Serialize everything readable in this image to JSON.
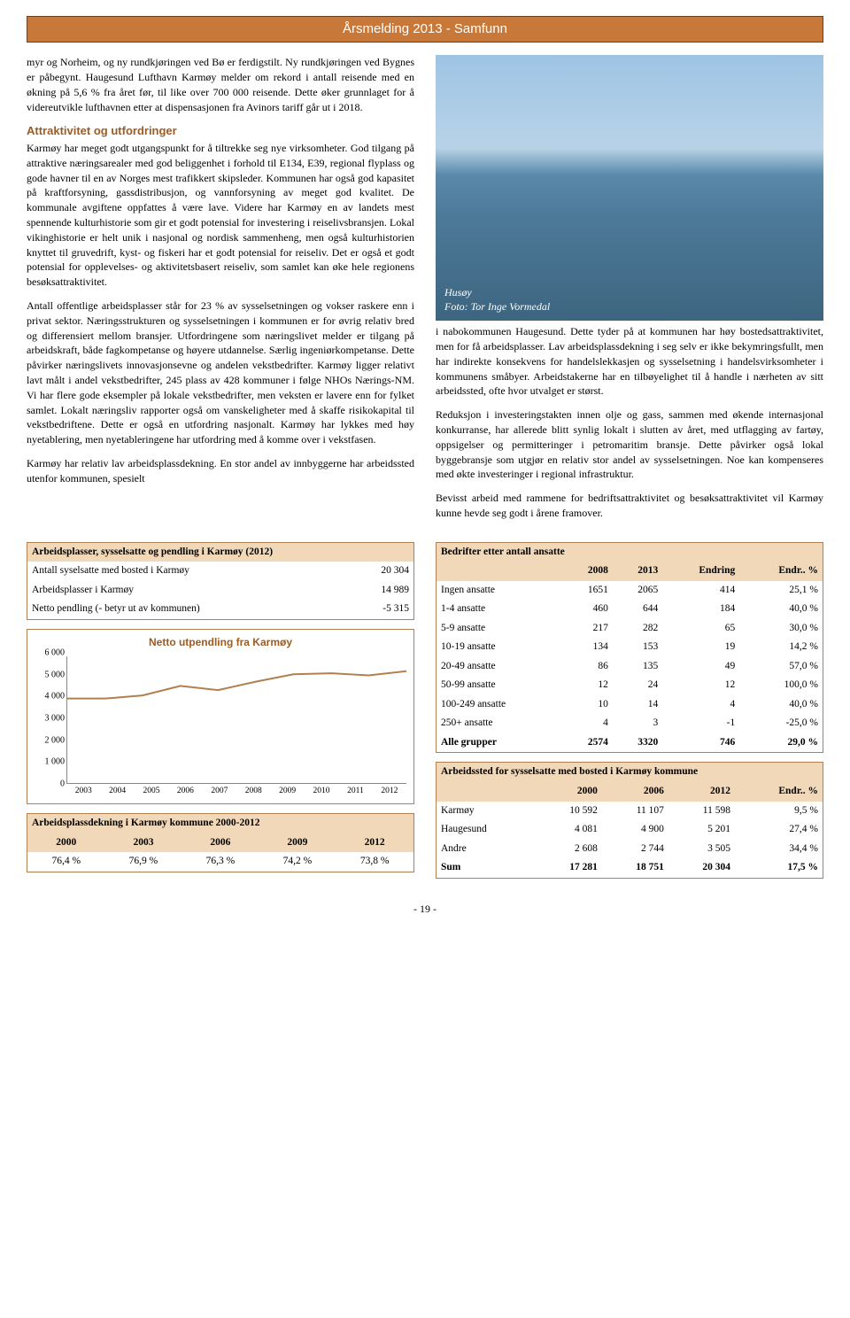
{
  "header": {
    "title": "Årsmelding 2013 - Samfunn"
  },
  "left": {
    "p1": "myr og Norheim, og ny rundkjøringen ved Bø er ferdigstilt. Ny rundkjøringen ved Bygnes er påbegynt. Haugesund Lufthavn Karmøy melder om rekord i antall reisende med en økning på 5,6 % fra året før, til like over 700 000 reisende. Dette øker grunnlaget for å videreutvikle lufthavnen etter at dispensasjonen fra Avinors tariff går ut i 2018.",
    "h1": "Attraktivitet og utfordringer",
    "p2": "Karmøy har meget godt utgangspunkt for å tiltrekke seg nye virksomheter. God tilgang på attraktive næringsarealer med god beliggenhet i forhold til E134, E39, regional flyplass og gode havner til en av Norges mest trafikkert skipsleder. Kommunen har også god kapasitet på kraftforsyning, gassdistribusjon, og vannforsyning av meget god kvalitet. De kommunale avgiftene oppfattes å være lave. Videre har Karmøy en av landets mest spennende kulturhistorie som gir et godt potensial for investering i reiselivsbransjen. Lokal vikinghistorie er helt unik i nasjonal og nordisk sammenheng, men også kulturhistorien knyttet til gruvedrift, kyst- og fiskeri har et godt potensial for reiseliv. Det er også et godt potensial for opplevelses- og aktivitetsbasert reiseliv, som samlet kan øke hele regionens besøksattraktivitet.",
    "p3": "Antall offentlige arbeidsplasser står for 23 % av sysselsetningen og vokser raskere enn i privat sektor. Næringsstrukturen og sysselsetningen i kommunen er for øvrig relativ bred og differensiert mellom bransjer. Utfordringene som næringslivet melder er tilgang på arbeidskraft, både fagkompetanse og høyere utdannelse. Særlig ingeniørkompetanse. Dette påvirker næringslivets innovasjonsevne og andelen vekstbedrifter. Karmøy ligger relativt lavt målt i andel vekstbedrifter, 245 plass av 428 kommuner i følge NHOs Nærings-NM. Vi har flere gode eksempler på lokale vekstbedrifter, men veksten er lavere enn for fylket samlet. Lokalt næringsliv rapporter også om vanskeligheter med å skaffe risikokapital til vekstbedriftene. Dette er også en utfordring nasjonalt. Karmøy har lykkes med høy nyetablering, men nyetableringene har utfordring med å komme over i vekstfasen.",
    "p4": "Karmøy har relativ lav arbeidsplassdekning. En stor andel av innbyggerne har arbeidssted utenfor kommunen, spesielt"
  },
  "photo": {
    "caption1": "Husøy",
    "caption2": "Foto: Tor Inge Vormedal"
  },
  "right": {
    "p1": "i nabokommunen Haugesund. Dette tyder på at kommunen har høy bostedsattraktivitet, men for få arbeidsplasser. Lav arbeidsplassdekning i seg selv er ikke bekymringsfullt, men har indirekte konsekvens for handelslekkasjen og sysselsetning i handelsvirksomheter i kommunens småbyer. Arbeidstakerne har en tilbøyelighet til å handle i nærheten av sitt arbeidssted, ofte hvor utvalget er størst.",
    "p2": "Reduksjon i investeringstakten innen olje og gass, sammen med økende internasjonal konkurranse, har allerede blitt synlig lokalt i slutten av året, med utflagging av fartøy, oppsigelser og permitteringer i petromaritim bransje. Dette påvirker også lokal byggebransje som utgjør en relativ stor andel av sysselsetningen. Noe kan kompenseres med økte investeringer i regional infrastruktur.",
    "p3": "Bevisst arbeid med rammene for bedriftsattraktivitet og besøksattraktivitet vil Karmøy kunne hevde seg godt i årene framover."
  },
  "table1": {
    "title": "Arbeidsplasser, sysselsatte og pendling i Karmøy (2012)",
    "rows": [
      [
        "Antall syselsatte med bosted i Karmøy",
        "20 304"
      ],
      [
        "Arbeidsplasser i Karmøy",
        "14 989"
      ],
      [
        "Netto pendling (- betyr ut av kommunen)",
        "-5 315"
      ]
    ]
  },
  "chart": {
    "title": "Netto utpendling fra Karmøy",
    "ylim": [
      0,
      6000
    ],
    "ystep": 1000,
    "ylabels": [
      "6 000",
      "5 000",
      "4 000",
      "3 000",
      "2 000",
      "1 000",
      "0"
    ],
    "years": [
      "2003",
      "2004",
      "2005",
      "2006",
      "2007",
      "2008",
      "2009",
      "2010",
      "2011",
      "2012"
    ],
    "values": [
      4000,
      4000,
      4150,
      4600,
      4400,
      4800,
      5150,
      5200,
      5100,
      5300
    ],
    "line_color": "#b08050",
    "line_width": 2
  },
  "table2": {
    "title": "Arbeidsplassdekning i Karmøy kommune 2000-2012",
    "headers": [
      "2000",
      "2003",
      "2006",
      "2009",
      "2012"
    ],
    "row": [
      "76,4 %",
      "76,9 %",
      "76,3 %",
      "74,2 %",
      "73,8 %"
    ]
  },
  "table3": {
    "title": "Bedrifter etter antall ansatte",
    "headers": [
      "",
      "2008",
      "2013",
      "Endring",
      "Endr.. %"
    ],
    "rows": [
      [
        "Ingen ansatte",
        "1651",
        "2065",
        "414",
        "25,1 %"
      ],
      [
        "1-4 ansatte",
        "460",
        "644",
        "184",
        "40,0 %"
      ],
      [
        "5-9 ansatte",
        "217",
        "282",
        "65",
        "30,0 %"
      ],
      [
        "10-19 ansatte",
        "134",
        "153",
        "19",
        "14,2 %"
      ],
      [
        "20-49 ansatte",
        "86",
        "135",
        "49",
        "57,0 %"
      ],
      [
        "50-99 ansatte",
        "12",
        "24",
        "12",
        "100,0 %"
      ],
      [
        "100-249 ansatte",
        "10",
        "14",
        "4",
        "40,0 %"
      ],
      [
        "250+ ansatte",
        "4",
        "3",
        "-1",
        "-25,0 %"
      ],
      [
        "Alle grupper",
        "2574",
        "3320",
        "746",
        "29,0 %"
      ]
    ]
  },
  "table4": {
    "title": "Arbeidssted for sysselsatte med bosted i Karmøy kommune",
    "headers": [
      "",
      "2000",
      "2006",
      "2012",
      "Endr.. %"
    ],
    "rows": [
      [
        "Karmøy",
        "10 592",
        "11 107",
        "11 598",
        "9,5 %"
      ],
      [
        "Haugesund",
        "4 081",
        "4 900",
        "5 201",
        "27,4 %"
      ],
      [
        "Andre",
        "2 608",
        "2 744",
        "3 505",
        "34,4 %"
      ],
      [
        "Sum",
        "17 281",
        "18 751",
        "20 304",
        "17,5 %"
      ]
    ]
  },
  "footer": {
    "page": "- 19 -"
  }
}
